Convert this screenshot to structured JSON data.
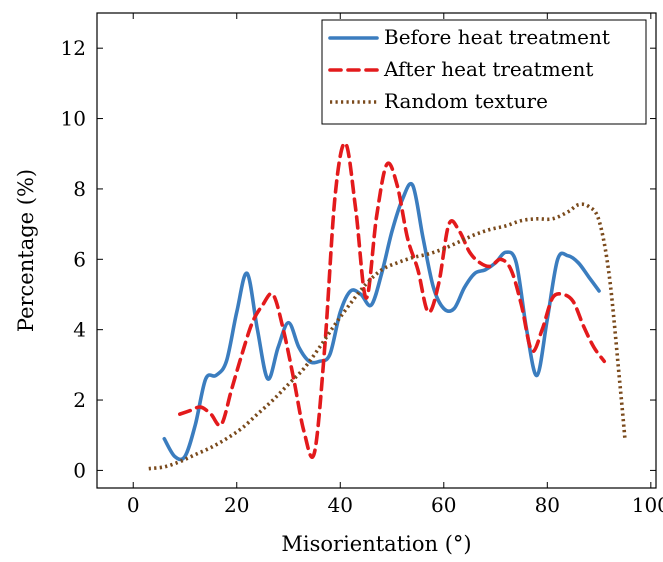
{
  "chart_data": {
    "type": "line",
    "xlabel": "Misorientation (°)",
    "ylabel": "Percentage (%)",
    "xlim": [
      -7,
      101
    ],
    "ylim": [
      -0.5,
      13
    ],
    "xticks": [
      0,
      20,
      40,
      60,
      80,
      100
    ],
    "yticks": [
      0,
      2,
      4,
      6,
      8,
      10,
      12
    ],
    "grid": false,
    "legend_position": "top-right",
    "series": [
      {
        "name": "Before heat treatment",
        "color": "#3b7dbf",
        "style": "solid",
        "x": [
          6,
          8,
          10,
          12,
          14,
          16,
          18,
          20,
          22,
          24,
          26,
          28,
          30,
          32,
          34,
          36,
          38,
          40,
          42,
          44,
          46,
          48,
          50,
          52,
          54,
          56,
          58,
          60,
          62,
          64,
          66,
          68,
          70,
          72,
          74,
          76,
          78,
          80,
          82,
          84,
          86,
          88,
          90
        ],
        "y": [
          0.9,
          0.4,
          0.4,
          1.3,
          2.6,
          2.7,
          3.1,
          4.5,
          5.6,
          4.0,
          2.6,
          3.5,
          4.2,
          3.5,
          3.1,
          3.1,
          3.3,
          4.5,
          5.1,
          5.0,
          4.7,
          5.6,
          6.8,
          7.7,
          8.1,
          6.6,
          5.2,
          4.6,
          4.6,
          5.2,
          5.6,
          5.7,
          5.9,
          6.2,
          5.9,
          4.0,
          2.7,
          4.3,
          6.0,
          6.1,
          5.9,
          5.5,
          5.1
        ]
      },
      {
        "name": "After heat treatment",
        "color": "#e31a1c",
        "style": "dashed",
        "x": [
          9,
          11,
          13,
          15,
          17,
          19,
          21,
          23,
          25,
          27,
          29,
          31,
          33,
          35,
          37,
          39,
          41,
          43,
          45,
          47,
          49,
          51,
          53,
          55,
          57,
          59,
          61,
          63,
          65,
          67,
          69,
          71,
          73,
          75,
          77,
          79,
          81,
          83,
          85,
          87,
          89,
          91
        ],
        "y": [
          1.6,
          1.7,
          1.8,
          1.6,
          1.3,
          2.3,
          3.3,
          4.2,
          4.7,
          5.0,
          4.0,
          2.6,
          1.1,
          0.5,
          3.5,
          7.8,
          9.3,
          7.4,
          4.9,
          7.2,
          8.7,
          8.1,
          6.6,
          5.7,
          4.5,
          5.3,
          7.0,
          6.8,
          6.2,
          5.9,
          5.8,
          6.0,
          5.7,
          4.7,
          3.4,
          4.0,
          4.9,
          5.0,
          4.8,
          4.1,
          3.5,
          3.1
        ]
      },
      {
        "name": "Random texture",
        "color": "#7a4a1c",
        "style": "dotted",
        "x": [
          3,
          6,
          9,
          12,
          15,
          18,
          21,
          24,
          27,
          30,
          33,
          36,
          39,
          42,
          45,
          48,
          51,
          54,
          57,
          60,
          63,
          66,
          69,
          72,
          75,
          78,
          81,
          84,
          86,
          88,
          90,
          92,
          94,
          95
        ],
        "y": [
          0.05,
          0.1,
          0.25,
          0.45,
          0.65,
          0.9,
          1.2,
          1.6,
          2.0,
          2.45,
          2.9,
          3.5,
          4.15,
          4.75,
          5.3,
          5.7,
          5.9,
          6.05,
          6.15,
          6.3,
          6.5,
          6.7,
          6.85,
          6.95,
          7.1,
          7.15,
          7.15,
          7.35,
          7.55,
          7.5,
          7.1,
          5.5,
          2.5,
          0.9
        ]
      }
    ]
  }
}
